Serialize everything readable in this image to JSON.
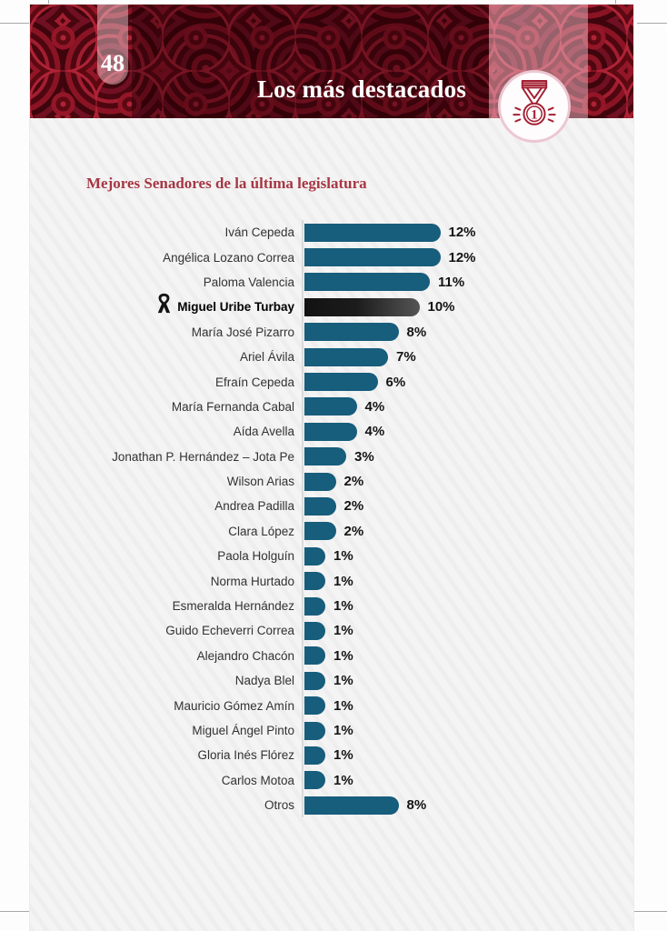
{
  "page": {
    "number": "48",
    "header": {
      "title": "Los más destacados",
      "medal_rank": "1",
      "medal_icon_color": "#a32032",
      "banner_theme": "red-roses"
    }
  },
  "chart_data": {
    "type": "bar",
    "orientation": "horizontal",
    "title": "Mejores Senadores de la última legislatura",
    "unit": "%",
    "xlim": [
      0,
      12
    ],
    "grid": false,
    "bar_color": "#175d7c",
    "highlight_bar_gradient": [
      "#121212",
      "#555555"
    ],
    "highlight_index": 3,
    "highlight_marker": "black-mourning-ribbon",
    "categories": [
      "Iván Cepeda",
      "Angélica Lozano Correa",
      "Paloma Valencia",
      "Miguel Uribe Turbay",
      "María José Pizarro",
      "Ariel Ávila",
      "Efraín Cepeda",
      "María Fernanda Cabal",
      "Aída Avella",
      "Jonathan P. Hernández – Jota Pe",
      "Wilson Arias",
      "Andrea Padilla",
      "Clara López",
      "Paola Holguín",
      "Norma Hurtado",
      "Esmeralda Hernández",
      "Guido Echeverri Correa",
      "Alejandro Chacón",
      "Nadya Blel",
      "Mauricio Gómez Amín",
      "Miguel Ángel Pinto",
      "Gloria Inés Flórez",
      "Carlos Motoa",
      "Otros"
    ],
    "values": [
      12,
      12,
      11,
      10,
      8,
      7,
      6,
      4,
      4,
      3,
      2,
      2,
      2,
      1,
      1,
      1,
      1,
      1,
      1,
      1,
      1,
      1,
      1,
      8
    ],
    "value_labels": [
      "12%",
      "12%",
      "11%",
      "10%",
      "8%",
      "7%",
      "6%",
      "4%",
      "4%",
      "3%",
      "2%",
      "2%",
      "2%",
      "1%",
      "1%",
      "1%",
      "1%",
      "1%",
      "1%",
      "1%",
      "1%",
      "1%",
      "1%",
      "8%"
    ]
  }
}
